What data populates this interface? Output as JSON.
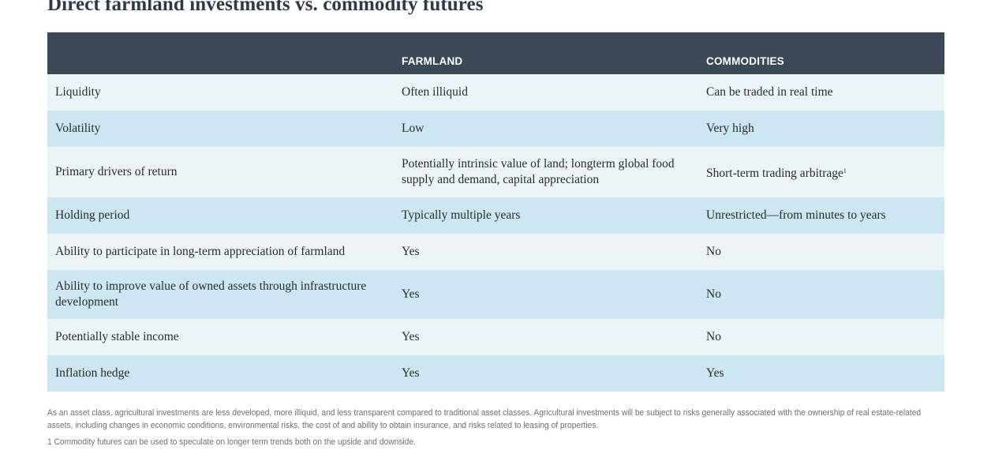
{
  "title": "Direct farmland investments vs. commodity futures",
  "table": {
    "headers": [
      "",
      "FARMLAND",
      "COMMODITIES"
    ],
    "rows": [
      {
        "label": "Liquidity",
        "farmland": "Often illiquid",
        "commodities": "Can be traded in real time"
      },
      {
        "label": "Volatility",
        "farmland": "Low",
        "commodities": "Very high"
      },
      {
        "label": "Primary drivers of return",
        "farmland": "Potentially intrinsic value of land; longterm global food supply and demand, capital appreciation",
        "commodities": "Short-term trading arbitrage",
        "commodities_sup": "1"
      },
      {
        "label": "Holding period",
        "farmland": "Typically multiple years",
        "commodities": "Unrestricted—from minutes to years"
      },
      {
        "label": "Ability to participate in long-term appreciation of farmland",
        "farmland": "Yes",
        "commodities": "No"
      },
      {
        "label": "Ability to improve value of owned assets through infrastructure development",
        "farmland": "Yes",
        "commodities": "No"
      },
      {
        "label": "Potentially stable income",
        "farmland": "Yes",
        "commodities": "No"
      },
      {
        "label": "Inflation hedge",
        "farmland": "Yes",
        "commodities": "Yes"
      }
    ]
  },
  "disclaimer": "As an asset class, agricultural investments are less developed, more illiquid, and less transparent compared to traditional asset classes. Agricultural investments will be subject to risks generally associated with the ownership of real estate-related assets, including changes in economic conditions, environmental risks, the cost of and ability to obtain insurance, and risks related to leasing of properties.",
  "footnote": "1 Commodity futures can be used to speculate on longer term trends both on the upside and downside.",
  "colors": {
    "header_bg": "#3b4957",
    "row_light": "#ebf5f8",
    "row_dark": "#cce7f1",
    "title": "#2c3a49"
  }
}
